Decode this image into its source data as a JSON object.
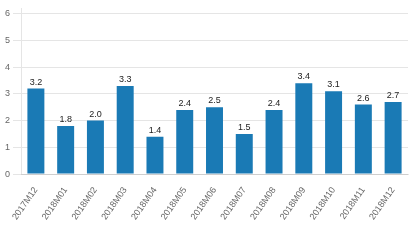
{
  "chart_data": {
    "type": "bar",
    "categories": [
      "2017M12",
      "2018M01",
      "2018M02",
      "2018M03",
      "2018M04",
      "2018M05",
      "2018M06",
      "2018M07",
      "2018M08",
      "2018M09",
      "2018M10",
      "2018M11",
      "2018M12"
    ],
    "values": [
      3.2,
      1.8,
      2.0,
      3.3,
      1.4,
      2.4,
      2.5,
      1.5,
      2.4,
      3.4,
      3.1,
      2.6,
      2.7
    ],
    "value_labels": [
      "3.2",
      "1.8",
      "2.0",
      "3.3",
      "1.4",
      "2.4",
      "2.5",
      "1.5",
      "2.4",
      "3.4",
      "3.1",
      "2.6",
      "2.7"
    ],
    "color": "#1a7ab5",
    "ylim": [
      0,
      6.2
    ],
    "yticks": [
      0,
      1,
      2,
      3,
      4,
      5,
      6
    ],
    "grid": true,
    "data_labels": true
  }
}
